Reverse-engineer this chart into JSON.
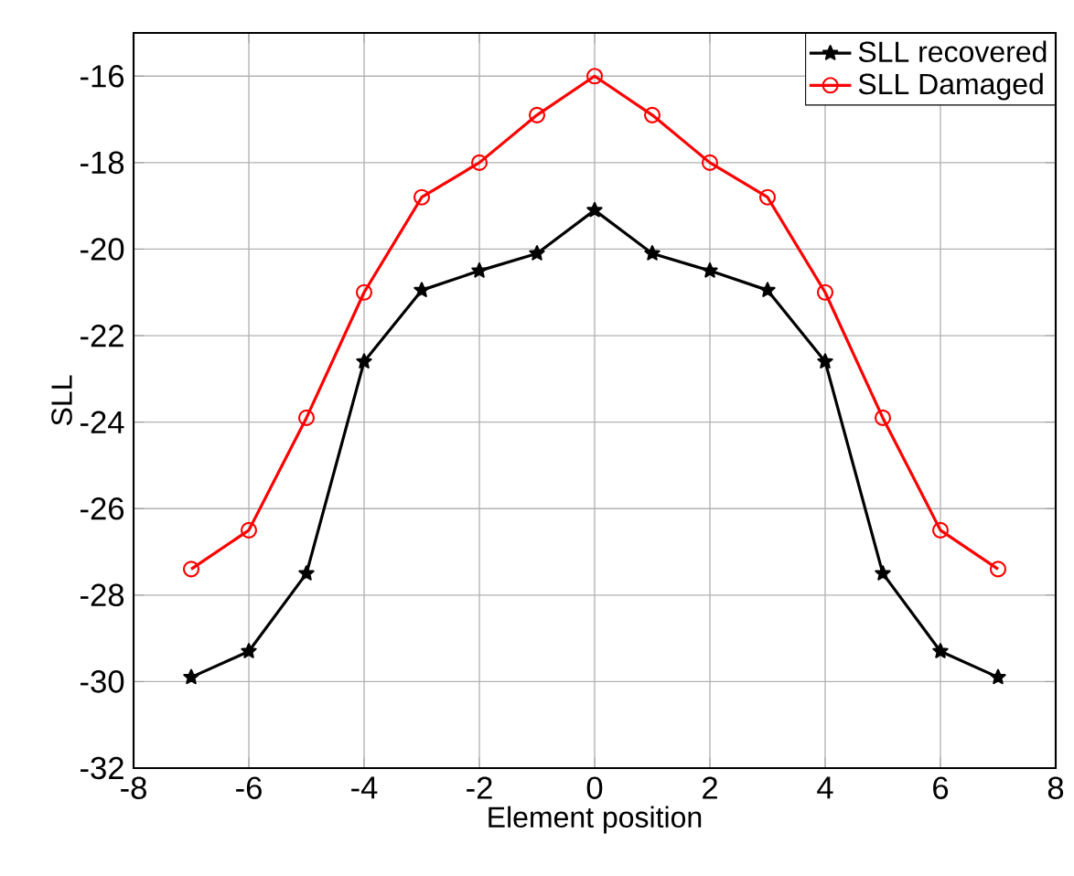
{
  "chart_data": {
    "type": "line",
    "xlabel": "Element position",
    "ylabel": "SLL",
    "x": [
      -7,
      -6,
      -5,
      -4,
      -3,
      -2,
      -1,
      0,
      1,
      2,
      3,
      4,
      5,
      6,
      7
    ],
    "series": [
      {
        "name": "SLL recovered",
        "color": "#000000",
        "marker": "star",
        "values": [
          -29.9,
          -29.3,
          -27.5,
          -22.6,
          -20.95,
          -20.5,
          -20.1,
          -19.1,
          -20.1,
          -20.5,
          -20.95,
          -22.6,
          -27.5,
          -29.3,
          -29.9
        ]
      },
      {
        "name": "SLL Damaged",
        "color": "#ff0000",
        "marker": "circle",
        "values": [
          -27.4,
          -26.5,
          -23.9,
          -21.0,
          -18.8,
          -18.0,
          -16.9,
          -16.0,
          -16.9,
          -18.0,
          -18.8,
          -21.0,
          -23.9,
          -26.5,
          -27.4
        ]
      }
    ],
    "xlim": [
      -8,
      8
    ],
    "ylim": [
      -32,
      -15
    ],
    "xticks": [
      -8,
      -6,
      -4,
      -2,
      0,
      2,
      4,
      6,
      8
    ],
    "yticks": [
      -32,
      -30,
      -28,
      -26,
      -24,
      -22,
      -20,
      -18,
      -16
    ],
    "grid": true,
    "legend": "top right",
    "line_style": "solid"
  }
}
